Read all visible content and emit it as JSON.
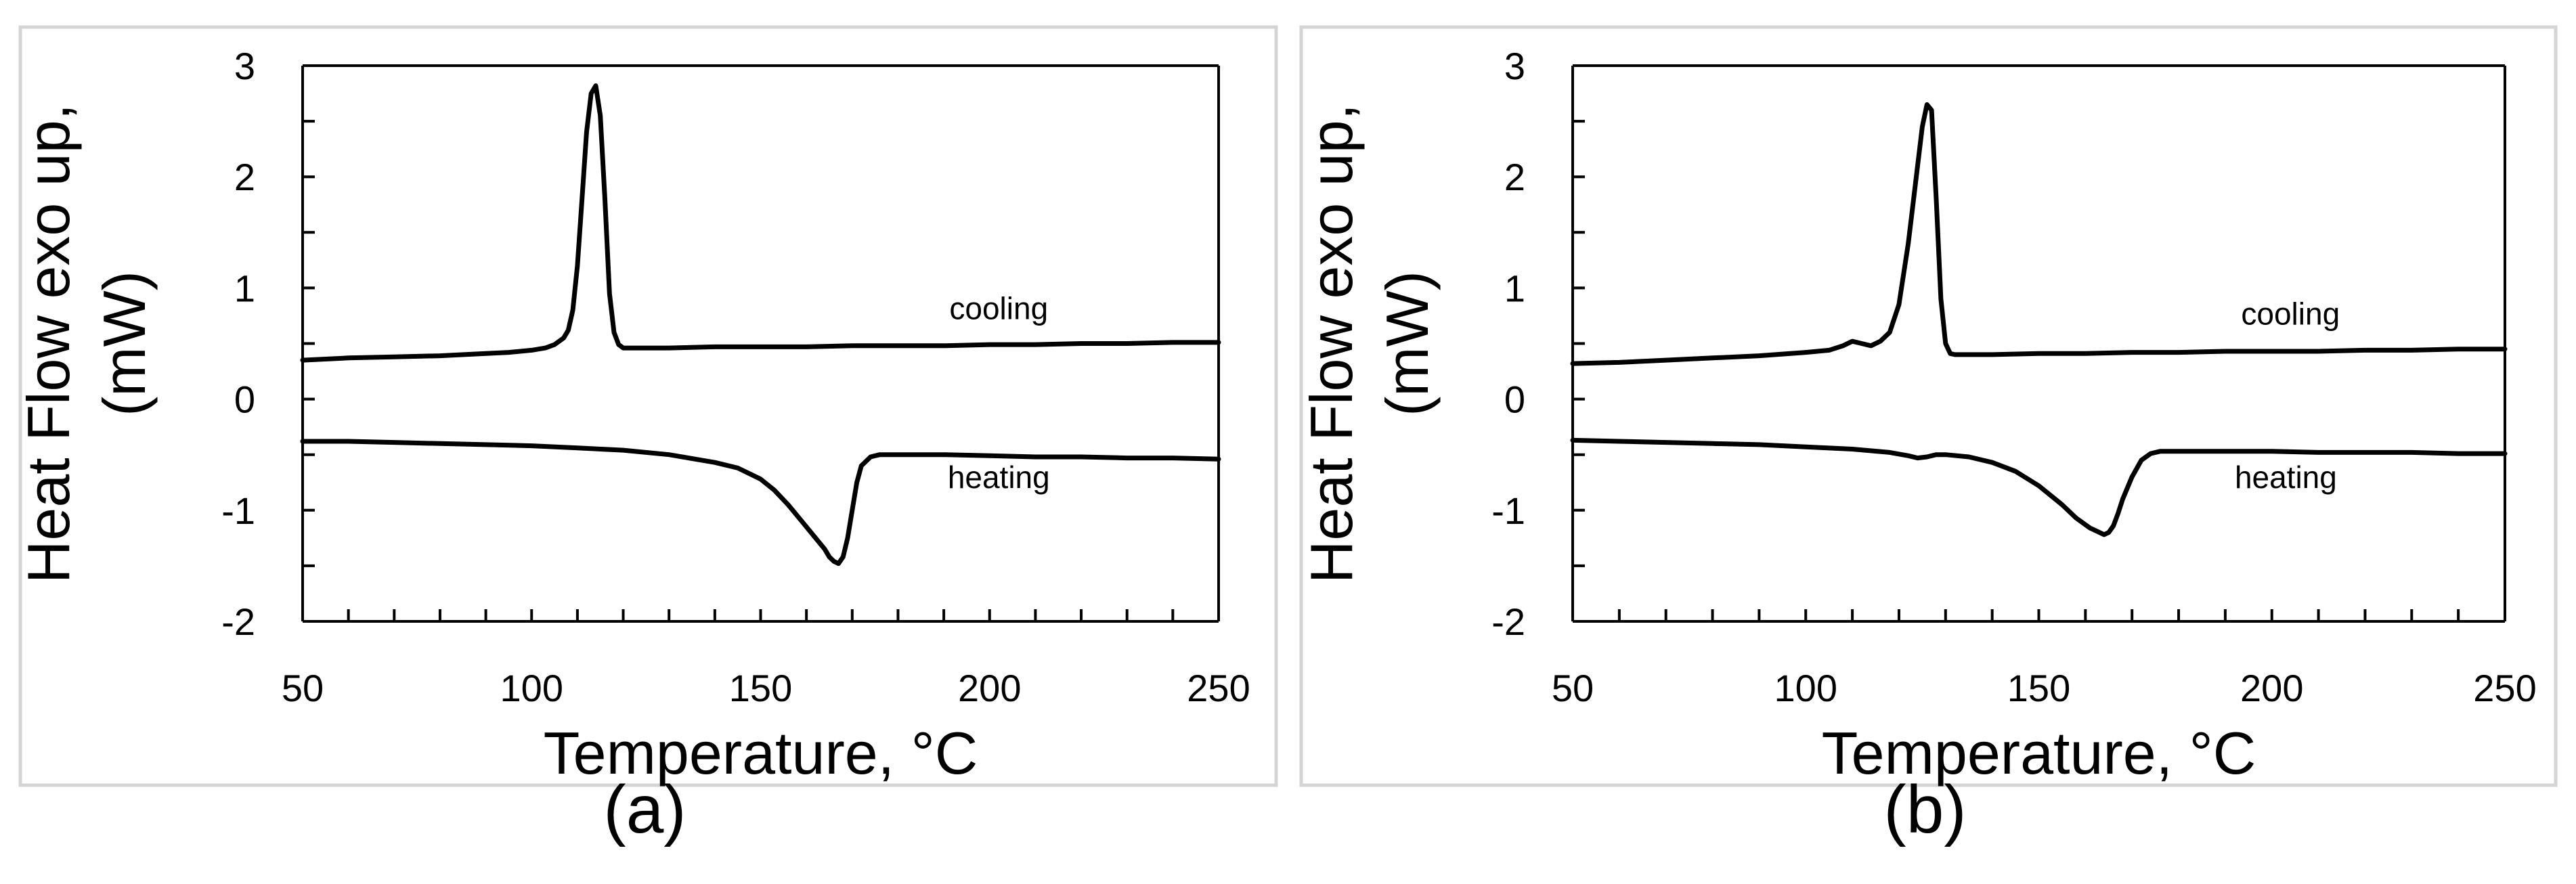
{
  "colors": {
    "line": "#000000",
    "frame": "#d4d4d4",
    "background": "#ffffff"
  },
  "chart_data": [
    {
      "type": "line",
      "panel_label": "(a)",
      "xlabel": "Temperature, °C",
      "ylabel_lines": [
        "Heat Flow exo up,",
        "(mW)"
      ],
      "xlim": [
        50,
        250
      ],
      "ylim": [
        -2,
        3
      ],
      "xticks": [
        50,
        100,
        150,
        200,
        250
      ],
      "yticks": [
        -2,
        -1,
        0,
        1,
        2,
        3
      ],
      "grid": false,
      "annotations": [
        {
          "text": "cooling",
          "x": 202,
          "y": 0.72
        },
        {
          "text": "heating",
          "x": 202,
          "y": -0.8
        }
      ],
      "series": [
        {
          "name": "cooling",
          "x": [
            50,
            60,
            70,
            80,
            90,
            95,
            100,
            103,
            105,
            107,
            108,
            109,
            110,
            111,
            112,
            113,
            114,
            115,
            116,
            117,
            118,
            119,
            120,
            122,
            125,
            130,
            140,
            150,
            160,
            170,
            180,
            190,
            200,
            210,
            220,
            230,
            240,
            250
          ],
          "y": [
            0.35,
            0.37,
            0.38,
            0.39,
            0.41,
            0.42,
            0.44,
            0.46,
            0.49,
            0.55,
            0.62,
            0.8,
            1.2,
            1.8,
            2.4,
            2.75,
            2.82,
            2.55,
            1.8,
            0.95,
            0.6,
            0.49,
            0.46,
            0.46,
            0.46,
            0.46,
            0.47,
            0.47,
            0.47,
            0.48,
            0.48,
            0.48,
            0.49,
            0.49,
            0.5,
            0.5,
            0.51,
            0.51
          ]
        },
        {
          "name": "heating",
          "x": [
            50,
            60,
            70,
            80,
            90,
            100,
            110,
            120,
            130,
            140,
            145,
            150,
            153,
            156,
            159,
            162,
            164,
            165,
            166,
            167,
            168,
            169,
            170,
            171,
            172,
            174,
            176,
            180,
            190,
            200,
            210,
            220,
            230,
            240,
            250
          ],
          "y": [
            -0.38,
            -0.38,
            -0.39,
            -0.4,
            -0.41,
            -0.42,
            -0.44,
            -0.46,
            -0.5,
            -0.57,
            -0.62,
            -0.72,
            -0.82,
            -0.95,
            -1.1,
            -1.25,
            -1.35,
            -1.42,
            -1.46,
            -1.48,
            -1.42,
            -1.25,
            -1.0,
            -0.75,
            -0.6,
            -0.52,
            -0.5,
            -0.5,
            -0.5,
            -0.51,
            -0.52,
            -0.52,
            -0.53,
            -0.53,
            -0.54
          ]
        }
      ]
    },
    {
      "type": "line",
      "panel_label": "(b)",
      "xlabel": "Temperature, °C",
      "ylabel_lines": [
        "Heat Flow exo up,",
        "(mW)"
      ],
      "xlim": [
        50,
        250
      ],
      "ylim": [
        -2,
        3
      ],
      "xticks": [
        50,
        100,
        150,
        200,
        250
      ],
      "yticks": [
        -2,
        -1,
        0,
        1,
        2,
        3
      ],
      "grid": false,
      "annotations": [
        {
          "text": "cooling",
          "x": 204,
          "y": 0.67
        },
        {
          "text": "heating",
          "x": 203,
          "y": -0.8
        }
      ],
      "series": [
        {
          "name": "cooling",
          "x": [
            50,
            60,
            70,
            80,
            90,
            100,
            105,
            108,
            110,
            112,
            114,
            116,
            118,
            120,
            122,
            124,
            125,
            126,
            127,
            128,
            129,
            130,
            131,
            132,
            135,
            140,
            150,
            160,
            170,
            180,
            190,
            200,
            210,
            220,
            230,
            240,
            250
          ],
          "y": [
            0.32,
            0.33,
            0.35,
            0.37,
            0.39,
            0.42,
            0.44,
            0.48,
            0.52,
            0.5,
            0.48,
            0.52,
            0.6,
            0.85,
            1.4,
            2.1,
            2.45,
            2.65,
            2.6,
            1.8,
            0.9,
            0.5,
            0.41,
            0.4,
            0.4,
            0.4,
            0.41,
            0.41,
            0.42,
            0.42,
            0.43,
            0.43,
            0.43,
            0.44,
            0.44,
            0.45,
            0.45
          ]
        },
        {
          "name": "heating",
          "x": [
            50,
            60,
            70,
            80,
            90,
            100,
            110,
            118,
            122,
            124,
            126,
            128,
            130,
            135,
            140,
            145,
            150,
            155,
            158,
            161,
            163,
            164,
            165,
            166,
            167,
            168,
            170,
            172,
            174,
            176,
            180,
            190,
            200,
            210,
            220,
            230,
            240,
            250
          ],
          "y": [
            -0.37,
            -0.38,
            -0.39,
            -0.4,
            -0.41,
            -0.43,
            -0.45,
            -0.48,
            -0.51,
            -0.53,
            -0.52,
            -0.5,
            -0.5,
            -0.52,
            -0.57,
            -0.65,
            -0.78,
            -0.95,
            -1.07,
            -1.16,
            -1.2,
            -1.22,
            -1.2,
            -1.14,
            -1.03,
            -0.9,
            -0.7,
            -0.55,
            -0.49,
            -0.47,
            -0.47,
            -0.47,
            -0.47,
            -0.48,
            -0.48,
            -0.48,
            -0.49,
            -0.49
          ]
        }
      ]
    }
  ]
}
